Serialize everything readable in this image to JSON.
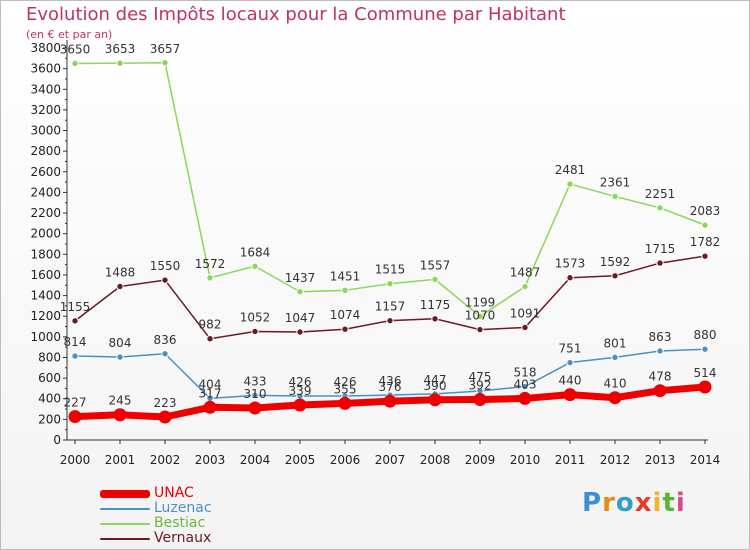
{
  "title": "Evolution des Impôts locaux pour la Commune par Habitant",
  "subtitle": "(en € et par an)",
  "logo": {
    "text": "Proxiti",
    "colors": [
      "#3a8fd6",
      "#e88a1a",
      "#2fa0c8",
      "#e53d2a",
      "#f3b32b",
      "#55b535",
      "#d84a8a"
    ]
  },
  "chart_data": {
    "type": "line",
    "x": [
      2000,
      2001,
      2002,
      2003,
      2004,
      2005,
      2006,
      2007,
      2008,
      2009,
      2010,
      2011,
      2012,
      2013,
      2014
    ],
    "ylim": [
      0,
      3800
    ],
    "ytick_step": 200,
    "grid": false,
    "legend_position": "bottom-left",
    "series": [
      {
        "name": "UNAC",
        "color": "#ee0000",
        "values": [
          227,
          245,
          223,
          317,
          310,
          339,
          355,
          376,
          390,
          392,
          403,
          440,
          410,
          478,
          514
        ],
        "labels": [
          "227",
          "245",
          "223",
          "317",
          "310",
          "339",
          "355",
          "376",
          "390",
          "392",
          "403",
          "440",
          "410",
          "478",
          "514"
        ]
      },
      {
        "name": "Luzenac",
        "color": "#4a90c8",
        "values": [
          814,
          804,
          836,
          404,
          433,
          426,
          426,
          436,
          447,
          475,
          518,
          751,
          801,
          863,
          880
        ],
        "labels": [
          "814",
          "804",
          "836",
          "404",
          "433",
          "426",
          "426",
          "436",
          "447",
          "475",
          "518",
          "751",
          "801",
          "863",
          "880"
        ]
      },
      {
        "name": "Bestiac",
        "color": "#88d85a",
        "values": [
          3650,
          3653,
          3657,
          1572,
          1684,
          1437,
          1451,
          1515,
          1557,
          1199,
          1487,
          2481,
          2361,
          2251,
          2083
        ],
        "labels": [
          "3650",
          "3653",
          "3657",
          "1572",
          "1684",
          "1437",
          "1451",
          "1515",
          "1557",
          "1199",
          "1487",
          "2481",
          "2361",
          "2251",
          "2083"
        ]
      },
      {
        "name": "Vernaux",
        "color": "#6a1a22",
        "values": [
          1155,
          1488,
          1550,
          982,
          1052,
          1047,
          1074,
          1157,
          1175,
          1070,
          1091,
          1573,
          1592,
          1715,
          1782
        ],
        "labels": [
          "1155",
          "1488",
          "1550",
          "982",
          "1052",
          "1047",
          "1074",
          "1157",
          "1175",
          "1070",
          "1091",
          "1573",
          "1592",
          "1715",
          "1782"
        ]
      }
    ]
  }
}
